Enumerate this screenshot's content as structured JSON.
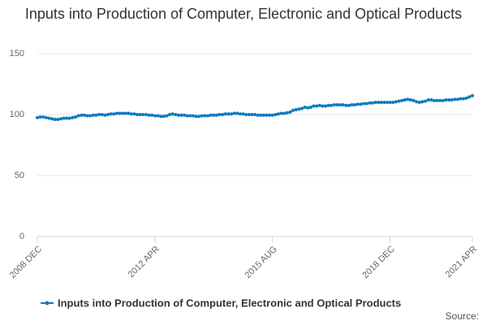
{
  "chart_data": {
    "type": "line",
    "title": "Inputs into Production of Computer, Electronic and Optical Products",
    "source": "Source:",
    "categories": [
      "2008 DEC",
      null,
      null,
      null,
      null,
      null,
      null,
      null,
      null,
      null,
      null,
      null,
      null,
      null,
      null,
      null,
      null,
      null,
      null,
      null,
      null,
      null,
      null,
      null,
      null,
      null,
      null,
      null,
      null,
      null,
      null,
      null,
      null,
      null,
      null,
      null,
      null,
      null,
      null,
      null,
      "2012 APR",
      null,
      null,
      null,
      null,
      null,
      null,
      null,
      null,
      null,
      null,
      null,
      null,
      null,
      null,
      null,
      null,
      null,
      null,
      null,
      null,
      null,
      null,
      null,
      null,
      null,
      null,
      null,
      null,
      null,
      null,
      null,
      null,
      null,
      null,
      null,
      null,
      null,
      null,
      null,
      "2015 AUG",
      null,
      null,
      null,
      null,
      null,
      null,
      null,
      null,
      null,
      null,
      null,
      null,
      null,
      null,
      null,
      null,
      null,
      null,
      null,
      null,
      null,
      null,
      null,
      null,
      null,
      null,
      null,
      null,
      null,
      null,
      null,
      null,
      null,
      null,
      null,
      null,
      null,
      null,
      null,
      "2018 DEC",
      null,
      null,
      null,
      null,
      null,
      null,
      null,
      null,
      null,
      null,
      null,
      null,
      null,
      null,
      null,
      null,
      null,
      null,
      null,
      null,
      null,
      null,
      null,
      null,
      null,
      null,
      null,
      "2021 APR"
    ],
    "series": [
      {
        "name": "Inputs into Production of Computer, Electronic and Optical Products",
        "color": "#0b7bc1",
        "values": [
          97.5,
          98,
          98,
          97.5,
          97,
          96.5,
          96,
          96,
          96.5,
          97,
          97,
          97,
          97.5,
          98,
          99,
          99.5,
          99.5,
          99,
          99,
          99.5,
          99.5,
          100,
          100,
          99.5,
          100,
          100.5,
          100.5,
          101,
          101,
          101,
          101,
          101,
          100.5,
          100.5,
          100,
          100,
          100,
          100,
          99.5,
          99.5,
          99,
          99,
          98.5,
          98.5,
          99,
          100,
          100.5,
          100,
          99.5,
          99.5,
          99.5,
          99,
          99,
          99,
          98.5,
          98.5,
          99,
          99,
          99,
          99.5,
          99.5,
          99.5,
          100,
          100,
          100.5,
          100.5,
          100.5,
          101,
          101,
          100.5,
          100.5,
          100,
          100,
          100,
          100,
          99.5,
          99.5,
          99.5,
          99.5,
          99.5,
          99.5,
          100,
          100.5,
          101,
          101,
          101.5,
          102,
          103.5,
          104,
          104.5,
          105,
          106,
          105.5,
          106,
          107,
          107,
          107.5,
          107,
          107,
          107.5,
          107.5,
          108,
          108,
          108,
          108,
          107.5,
          107.5,
          108,
          108,
          108.5,
          108.5,
          109,
          109,
          109.5,
          109.5,
          110,
          110,
          110,
          110,
          110,
          110,
          110,
          110.5,
          111,
          111.5,
          112,
          112.5,
          112,
          111.5,
          110.5,
          110,
          110.5,
          111,
          112,
          112,
          111.5,
          111.5,
          111.5,
          111.5,
          112,
          112,
          112,
          112.5,
          112.5,
          113,
          113,
          113.5,
          114.5,
          115.5
        ]
      }
    ],
    "ylim": [
      0,
      150
    ],
    "yticks": [
      0,
      50,
      100,
      150
    ],
    "grid": true
  }
}
